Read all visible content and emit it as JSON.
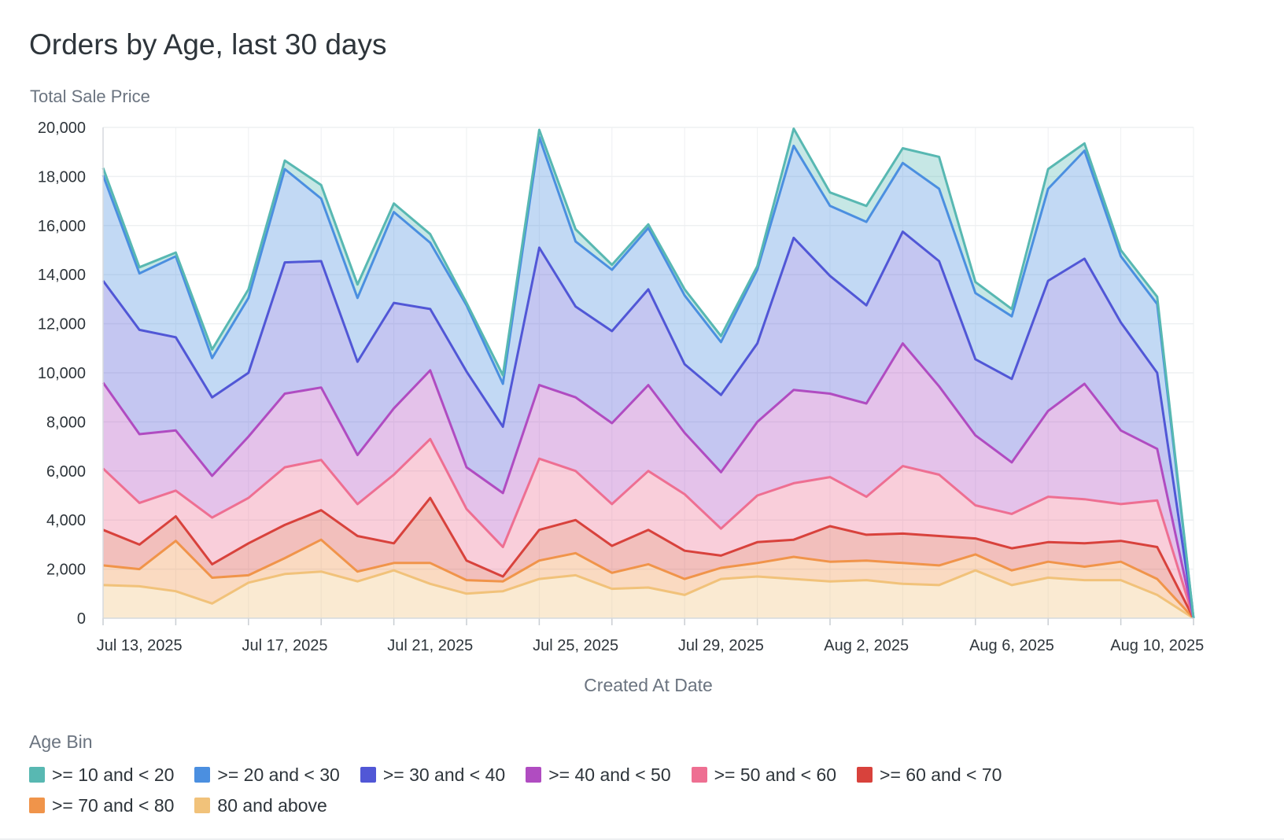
{
  "page": {
    "title": "Orders by Age, last 30 days"
  },
  "chart_data": {
    "type": "area",
    "stacked": true,
    "title": "Orders by Age, last 30 days",
    "xlabel": "Created At Date",
    "ylabel": "Total Sale Price",
    "ylim": [
      0,
      20000
    ],
    "y_ticks": [
      0,
      2000,
      4000,
      6000,
      8000,
      10000,
      12000,
      14000,
      16000,
      18000,
      20000
    ],
    "y_tick_labels": [
      "0",
      "2,000",
      "4,000",
      "6,000",
      "8,000",
      "10,000",
      "12,000",
      "14,000",
      "16,000",
      "18,000",
      "20,000"
    ],
    "x_tick_labels": [
      {
        "label": "Jul 13, 2025",
        "index": 1
      },
      {
        "label": "Jul 17, 2025",
        "index": 5
      },
      {
        "label": "Jul 21, 2025",
        "index": 9
      },
      {
        "label": "Jul 25, 2025",
        "index": 13
      },
      {
        "label": "Jul 29, 2025",
        "index": 17
      },
      {
        "label": "Aug 2, 2025",
        "index": 21
      },
      {
        "label": "Aug 6, 2025",
        "index": 25
      },
      {
        "label": "Aug 10, 2025",
        "index": 29
      }
    ],
    "x": [
      "2025-07-12",
      "2025-07-13",
      "2025-07-14",
      "2025-07-15",
      "2025-07-16",
      "2025-07-17",
      "2025-07-18",
      "2025-07-19",
      "2025-07-20",
      "2025-07-21",
      "2025-07-22",
      "2025-07-23",
      "2025-07-24",
      "2025-07-25",
      "2025-07-26",
      "2025-07-27",
      "2025-07-28",
      "2025-07-29",
      "2025-07-30",
      "2025-07-31",
      "2025-08-01",
      "2025-08-02",
      "2025-08-03",
      "2025-08-04",
      "2025-08-05",
      "2025-08-06",
      "2025-08-07",
      "2025-08-08",
      "2025-08-09",
      "2025-08-10",
      "2025-08-11"
    ],
    "legend_title": "Age Bin",
    "legend_position": "bottom",
    "grid": true,
    "series": [
      {
        "name": "80 and above",
        "color": "#f1c27a",
        "values": [
          1350,
          1300,
          1100,
          600,
          1450,
          1800,
          1900,
          1500,
          1950,
          1400,
          1000,
          1100,
          1600,
          1750,
          1200,
          1250,
          950,
          1600,
          1700,
          1600,
          1500,
          1550,
          1400,
          1350,
          1950,
          1350,
          1650,
          1550,
          1550,
          950,
          0
        ]
      },
      {
        "name": ">= 70 and < 80",
        "color": "#f0944a",
        "values": [
          800,
          700,
          2050,
          1050,
          300,
          650,
          1300,
          400,
          300,
          850,
          550,
          400,
          750,
          900,
          650,
          950,
          650,
          450,
          550,
          900,
          800,
          800,
          850,
          800,
          650,
          600,
          650,
          550,
          750,
          650,
          0
        ]
      },
      {
        "name": ">= 60 and < 70",
        "color": "#d8423c",
        "values": [
          1450,
          1000,
          1000,
          550,
          1300,
          1350,
          1200,
          1450,
          800,
          2650,
          800,
          200,
          1250,
          1350,
          1100,
          1400,
          1150,
          500,
          850,
          700,
          1450,
          1050,
          1200,
          1200,
          650,
          900,
          800,
          950,
          850,
          1300,
          0
        ]
      },
      {
        "name": ">= 50 and < 60",
        "color": "#ee6f92",
        "values": [
          2500,
          1700,
          1050,
          1900,
          1850,
          2350,
          2050,
          1300,
          2800,
          2400,
          2100,
          1200,
          2900,
          2000,
          1700,
          2400,
          2300,
          1100,
          1900,
          2300,
          2000,
          1550,
          2750,
          2500,
          1350,
          1400,
          1850,
          1800,
          1500,
          1900,
          0
        ]
      },
      {
        "name": ">= 40 and < 50",
        "color": "#b04cc1",
        "values": [
          3500,
          2800,
          2450,
          1700,
          2500,
          3000,
          2950,
          2000,
          2700,
          2800,
          1700,
          2200,
          3000,
          3000,
          3300,
          3500,
          2500,
          2300,
          3000,
          3800,
          3400,
          3800,
          5000,
          3600,
          2850,
          2100,
          3500,
          4700,
          3000,
          2100,
          0
        ]
      },
      {
        "name": ">= 30 and < 40",
        "color": "#5157d6",
        "values": [
          4150,
          4250,
          3800,
          3200,
          2600,
          5350,
          5150,
          3800,
          4300,
          2500,
          3900,
          2700,
          5600,
          3700,
          3750,
          3900,
          2800,
          3150,
          3200,
          6200,
          4800,
          4000,
          4550,
          5100,
          3100,
          3400,
          5300,
          5100,
          4400,
          3100,
          0
        ]
      },
      {
        "name": ">= 20 and < 30",
        "color": "#4b8fe0",
        "values": [
          4300,
          2300,
          3300,
          1600,
          3050,
          3800,
          2550,
          2600,
          3700,
          2700,
          2700,
          1750,
          4500,
          2650,
          2500,
          2500,
          2800,
          2150,
          3000,
          3750,
          2850,
          3400,
          2800,
          2950,
          2700,
          2550,
          3750,
          4400,
          2700,
          2800,
          0
        ]
      },
      {
        "name": ">= 10 and < 20",
        "color": "#58b8b2",
        "values": [
          300,
          250,
          150,
          350,
          350,
          350,
          550,
          550,
          350,
          350,
          100,
          350,
          300,
          500,
          200,
          150,
          250,
          250,
          150,
          700,
          550,
          650,
          600,
          1300,
          450,
          300,
          800,
          300,
          250,
          300,
          0
        ]
      }
    ]
  },
  "legend": {
    "title": "Age Bin",
    "items": [
      {
        "label": ">= 10 and < 20",
        "color": "#58b8b2"
      },
      {
        "label": ">= 20 and < 30",
        "color": "#4b8fe0"
      },
      {
        "label": ">= 30 and < 40",
        "color": "#5157d6"
      },
      {
        "label": ">= 40 and < 50",
        "color": "#b04cc1"
      },
      {
        "label": ">= 50 and < 60",
        "color": "#ee6f92"
      },
      {
        "label": ">= 60 and < 70",
        "color": "#d8423c"
      },
      {
        "label": ">= 70 and < 80",
        "color": "#f0944a"
      },
      {
        "label": "80 and above",
        "color": "#f1c27a"
      }
    ]
  }
}
